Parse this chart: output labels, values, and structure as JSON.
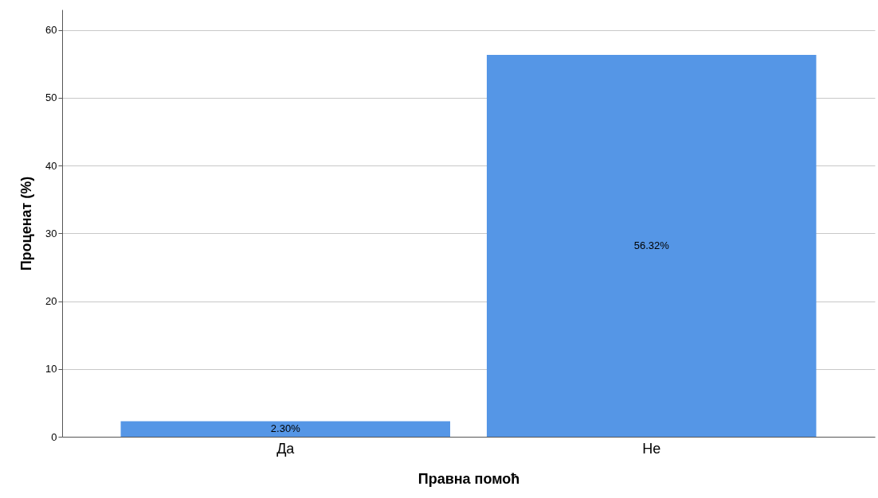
{
  "chart_data": {
    "type": "bar",
    "xlabel": "Правна помоћ",
    "ylabel": "Проценат (%)",
    "categories": [
      "Да",
      "Не"
    ],
    "values": [
      2.3,
      56.32
    ],
    "value_labels": [
      "2.30%",
      "56.32%"
    ],
    "color": "#5596e6",
    "ylim": [
      0,
      63
    ],
    "yticks": [
      0,
      10,
      20,
      30,
      40,
      50,
      60
    ],
    "grid": "y"
  }
}
